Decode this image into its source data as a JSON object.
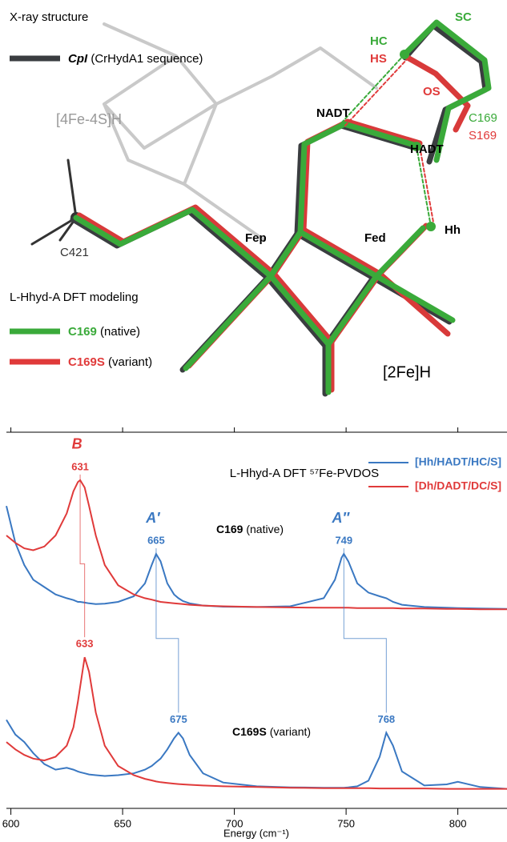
{
  "structure": {
    "labels": [
      "X-ray structure",
      "[4Fe-4S]H",
      "C421",
      "NADT",
      "HC",
      "HS",
      "SC",
      "OS",
      "C169",
      "S169",
      "HADT",
      "Fep",
      "Fed",
      "Hh",
      "[2Fe]H",
      "L-Hhyd-A DFT modeling"
    ],
    "legend": [
      {
        "name": "CpI",
        "note": "(CrHydA1 sequence)",
        "color": "#3a3d40"
      },
      {
        "name": "C169",
        "note": "(native)",
        "color": "#3aaa3a"
      },
      {
        "name": "C169S",
        "note": "(variant)",
        "color": "#e03a3a"
      }
    ]
  },
  "chart_data": {
    "type": "line",
    "title": "L-Hhyd-A DFT ⁵⁷Fe-PVDOS",
    "x_label": "Energy (cm⁻¹)",
    "xlim": [
      598,
      822
    ],
    "xticks": [
      600,
      650,
      700,
      750,
      800
    ],
    "ylim": [
      -2,
      100
    ],
    "x": [
      598,
      602,
      606,
      610,
      615,
      620,
      625,
      628,
      630,
      631,
      633,
      635,
      638,
      642,
      648,
      655,
      660,
      663,
      665,
      667,
      670,
      673,
      675,
      677,
      680,
      686,
      695,
      710,
      725,
      740,
      745,
      748,
      749,
      751,
      755,
      760,
      765,
      768,
      771,
      775,
      785,
      795,
      800,
      810,
      822
    ],
    "series": [
      {
        "name": "[Hh/HADT/HC/S]",
        "color": "#3a78c2",
        "values": [
          80,
          70,
          64,
          60,
          58,
          56,
          55,
          54.5,
          54,
          54,
          53.8,
          53.6,
          53.4,
          53.5,
          54,
          55.5,
          59,
          64,
          67,
          65,
          59,
          56,
          55,
          54.2,
          53.6,
          53,
          52.7,
          52.6,
          52.8,
          55,
          60,
          66,
          67,
          65,
          59,
          56.5,
          55.5,
          55,
          54,
          53.2,
          52.6,
          52.4,
          52.3,
          52.2,
          52.1
        ]
      },
      {
        "name": "[Dh/DADT/DC/S]",
        "color": "#e03a3a",
        "values": [
          72,
          70,
          68.5,
          68,
          69,
          72,
          78,
          84,
          86.5,
          87,
          85,
          80,
          72,
          64,
          58.5,
          56,
          55,
          54.6,
          54.3,
          54,
          53.8,
          53.6,
          53.5,
          53.4,
          53.2,
          53,
          52.8,
          52.6,
          52.5,
          52.4,
          52.4,
          52.4,
          52.4,
          52.4,
          52.3,
          52.3,
          52.3,
          52.3,
          52.3,
          52.2,
          52.2,
          52.1,
          52.1,
          52,
          52
        ]
      },
      {
        "color": "#3a78c2",
        "values": [
          22,
          18,
          16,
          13,
          10,
          8.5,
          9,
          8.5,
          8,
          7.8,
          7.5,
          7.2,
          7,
          6.8,
          7,
          7.5,
          8.5,
          9.5,
          10.5,
          11.5,
          14,
          17,
          18.5,
          17,
          12.5,
          7.5,
          5,
          4,
          3.7,
          3.6,
          3.6,
          3.6,
          3.6,
          3.7,
          4,
          5.5,
          12,
          18.5,
          15,
          8,
          4.2,
          4.5,
          5.2,
          3.8,
          3.3
        ]
      },
      {
        "color": "#e03a3a",
        "values": [
          16,
          14,
          12.5,
          11.5,
          11,
          12,
          15,
          20,
          27,
          31,
          39,
          35,
          24,
          15,
          9.5,
          7,
          6,
          5.6,
          5.3,
          5.1,
          4.9,
          4.7,
          4.6,
          4.5,
          4.4,
          4.2,
          4,
          3.8,
          3.6,
          3.5,
          3.5,
          3.5,
          3.5,
          3.5,
          3.5,
          3.5,
          3.4,
          3.4,
          3.4,
          3.4,
          3.4,
          3.3,
          3.3,
          3.3,
          3.3
        ]
      }
    ],
    "panel_labels": [
      {
        "name": "C169",
        "note": "(native)"
      },
      {
        "name": "C169S",
        "note": "(variant)"
      }
    ],
    "modes": [
      {
        "label": "B",
        "native": 631,
        "variant": 633,
        "color": "#e03a3a"
      },
      {
        "label": "A′",
        "native": 665,
        "variant": 675,
        "color": "#3a78c2"
      },
      {
        "label": "A″",
        "native": 749,
        "variant": 768,
        "color": "#3a78c2"
      }
    ]
  }
}
